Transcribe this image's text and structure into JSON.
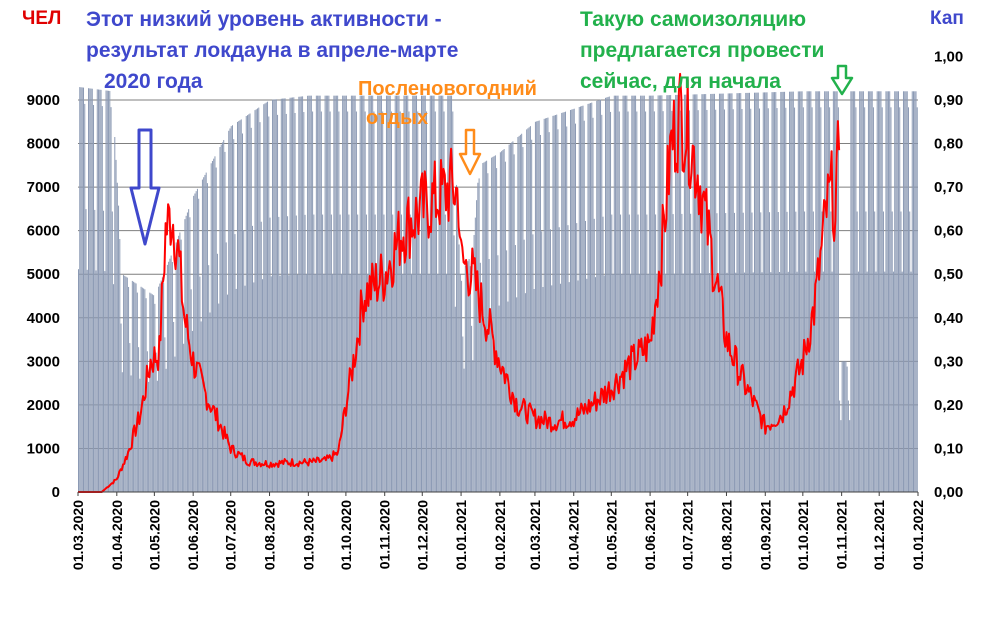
{
  "colors": {
    "bars": "#8c9ab4",
    "line": "#ff0000",
    "grid": "#7f7f7f",
    "annotation_blue": "#3f48cc",
    "annotation_orange": "#ff8c1a",
    "annotation_green": "#22b14c",
    "left_title": "#e00000",
    "right_title": "#3f48cc"
  },
  "titles": {
    "left_axis": "ЧЕЛ",
    "right_axis": "Кап"
  },
  "annotations": {
    "lockdown_line1": "Этот низкий уровень активности -",
    "lockdown_line2": "результат локдауна в апреле-марте",
    "lockdown_line3": "2020 года",
    "newyear_line1": "Посленовогодний",
    "newyear_line2": "отдых",
    "selfiso_line1": "Такую самоизоляцию",
    "selfiso_line2": "предлагается провести",
    "selfiso_line3": "сейчас, для начала"
  },
  "chart_data": {
    "type": "bar+line",
    "x_start": "01.03.2020",
    "x_end": "01.01.2022",
    "x_ticks": [
      "01.03.2020",
      "01.04.2020",
      "01.05.2020",
      "01.06.2020",
      "01.07.2020",
      "01.08.2020",
      "01.09.2020",
      "01.10.2020",
      "01.11.2020",
      "01.12.2020",
      "01.01.2021",
      "01.02.2021",
      "01.03.2021",
      "01.04.2021",
      "01.05.2021",
      "01.06.2021",
      "01.07.2021",
      "01.08.2021",
      "01.09.2021",
      "01.10.2021",
      "01.11.2021",
      "01.12.2021",
      "01.01.2022"
    ],
    "y_left": {
      "ticks": [
        "0",
        "1000",
        "2000",
        "3000",
        "4000",
        "5000",
        "6000",
        "7000",
        "8000",
        "9000"
      ],
      "ylim": [
        0,
        9000
      ]
    },
    "y_right": {
      "ticks": [
        "0,00",
        "0,10",
        "0,20",
        "0,30",
        "0,40",
        "0,50",
        "0,60",
        "0,70",
        "0,80",
        "0,90",
        "1,00"
      ],
      "ylim": [
        0,
        1.0
      ]
    },
    "grid": "horizontal",
    "bar_series": {
      "axis": "right",
      "weekday_pattern": [
        1.0,
        1.0,
        1.0,
        1.0,
        0.96,
        0.7,
        0.55
      ],
      "envelope": [
        [
          "01.03.2020",
          0.93
        ],
        [
          "28.03.2020",
          0.92
        ],
        [
          "05.04.2020",
          0.5
        ],
        [
          "01.05.2020",
          0.45
        ],
        [
          "15.05.2020",
          0.55
        ],
        [
          "01.06.2020",
          0.68
        ],
        [
          "01.07.2020",
          0.84
        ],
        [
          "01.08.2020",
          0.9
        ],
        [
          "01.09.2020",
          0.91
        ],
        [
          "01.12.2020",
          0.91
        ],
        [
          "25.12.2020",
          0.91
        ],
        [
          "31.12.2020",
          0.5
        ],
        [
          "10.01.2021",
          0.55
        ],
        [
          "15.01.2021",
          0.75
        ],
        [
          "01.02.2021",
          0.78
        ],
        [
          "01.03.2021",
          0.85
        ],
        [
          "01.04.2021",
          0.88
        ],
        [
          "01.05.2021",
          0.91
        ],
        [
          "01.06.2021",
          0.91
        ],
        [
          "01.10.2021",
          0.92
        ],
        [
          "29.10.2021",
          0.92
        ],
        [
          "30.10.2021",
          0.3
        ],
        [
          "07.11.2021",
          0.3
        ],
        [
          "08.11.2021",
          0.92
        ],
        [
          "31.12.2021",
          0.92
        ]
      ]
    },
    "line_series": {
      "axis": "left",
      "points": [
        [
          "01.03.2020",
          0
        ],
        [
          "20.03.2020",
          0
        ],
        [
          "01.04.2020",
          300
        ],
        [
          "10.04.2020",
          900
        ],
        [
          "20.04.2020",
          1800
        ],
        [
          "28.04.2020",
          3000
        ],
        [
          "05.05.2020",
          3200
        ],
        [
          "10.05.2020",
          6000
        ],
        [
          "15.05.2020",
          6400
        ],
        [
          "20.05.2020",
          5500
        ],
        [
          "25.05.2020",
          4000
        ],
        [
          "01.06.2020",
          3000
        ],
        [
          "10.06.2020",
          2300
        ],
        [
          "20.06.2020",
          1700
        ],
        [
          "01.07.2020",
          1000
        ],
        [
          "15.07.2020",
          700
        ],
        [
          "01.08.2020",
          650
        ],
        [
          "15.08.2020",
          680
        ],
        [
          "01.09.2020",
          680
        ],
        [
          "15.09.2020",
          720
        ],
        [
          "25.09.2020",
          900
        ],
        [
          "01.10.2020",
          2000
        ],
        [
          "10.10.2020",
          3500
        ],
        [
          "15.10.2020",
          4500
        ],
        [
          "01.11.2020",
          5000
        ],
        [
          "15.11.2020",
          6000
        ],
        [
          "01.12.2020",
          6500
        ],
        [
          "15.12.2020",
          6800
        ],
        [
          "25.12.2020",
          7000
        ],
        [
          "30.12.2020",
          6800
        ],
        [
          "01.01.2021",
          5300
        ],
        [
          "10.01.2021",
          5000
        ],
        [
          "15.01.2021",
          4500
        ],
        [
          "01.02.2021",
          3000
        ],
        [
          "15.02.2021",
          2000
        ],
        [
          "01.03.2021",
          1700
        ],
        [
          "15.03.2021",
          1600
        ],
        [
          "01.04.2021",
          1700
        ],
        [
          "15.04.2021",
          2000
        ],
        [
          "01.05.2021",
          2400
        ],
        [
          "15.05.2021",
          2900
        ],
        [
          "01.06.2021",
          3400
        ],
        [
          "10.06.2021",
          5500
        ],
        [
          "18.06.2021",
          8000
        ],
        [
          "25.06.2021",
          8700
        ],
        [
          "01.07.2021",
          8300
        ],
        [
          "10.07.2021",
          7200
        ],
        [
          "20.07.2021",
          5500
        ],
        [
          "01.08.2021",
          3500
        ],
        [
          "15.08.2021",
          2500
        ],
        [
          "01.09.2021",
          1500
        ],
        [
          "15.09.2021",
          1800
        ],
        [
          "01.10.2021",
          3000
        ],
        [
          "10.10.2021",
          4200
        ],
        [
          "15.10.2021",
          5300
        ],
        [
          "20.10.2021",
          6500
        ],
        [
          "25.10.2021",
          7000
        ],
        [
          "27.10.2021",
          6000
        ],
        [
          "29.10.2021",
          7500
        ],
        [
          "30.10.2021",
          8400
        ]
      ]
    }
  }
}
